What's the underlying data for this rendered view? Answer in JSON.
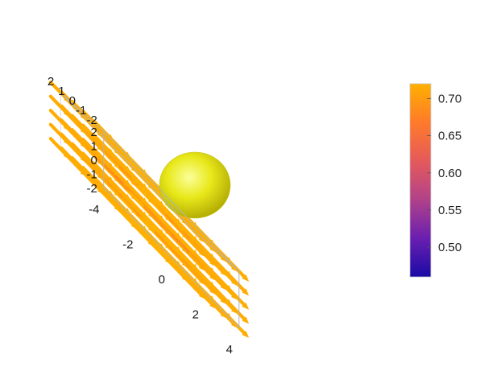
{
  "chart_data": {
    "type": "vector-field-3d",
    "description_visible": "3D vector plot of flow around a sphere, arrows colored by magnitude",
    "axes": {
      "x": {
        "range": [
          -4,
          4
        ],
        "ticks": [
          "-4",
          "-2",
          "0",
          "2",
          "4"
        ]
      },
      "y": {
        "range": [
          -2,
          2
        ],
        "ticks": [
          "-2",
          "-1",
          "0",
          "1",
          "2"
        ]
      },
      "z": {
        "range": [
          -2,
          2
        ],
        "ticks": [
          "-2",
          "-1",
          "0",
          "1",
          "2"
        ]
      }
    },
    "sphere": {
      "center": [
        0,
        0,
        0
      ],
      "radius": 0.8,
      "color": "#e8e81a"
    },
    "flow": {
      "U": 0.72,
      "direction": "+x",
      "grid_step": 1
    },
    "colorbar": {
      "range": [
        0.46,
        0.72
      ],
      "ticks": [
        "0.50",
        "0.55",
        "0.60",
        "0.65",
        "0.70"
      ],
      "tick_values": [
        0.5,
        0.55,
        0.6,
        0.65,
        0.7
      ],
      "colors": [
        "#1a0aa6",
        "#6a1fb0",
        "#b1428a",
        "#e55a5a",
        "#ff7a2a",
        "#ffb000"
      ]
    }
  }
}
